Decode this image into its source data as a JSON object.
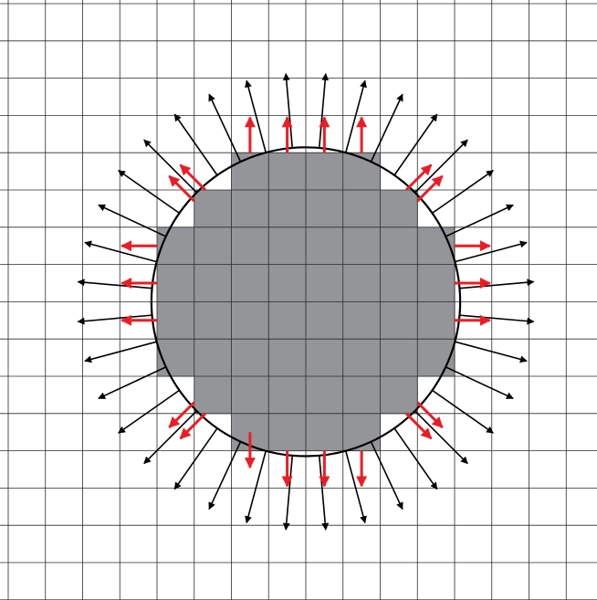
{
  "colors": {
    "background": "#ffffff",
    "grid_line": "#2b2b2b",
    "filled_cell": "#939598",
    "circle_outline": "#000000",
    "normal_arrow": "#000000",
    "staircase_arrow": "#ed1c24"
  },
  "grid": {
    "columns": 16,
    "rows": 16
  },
  "filled_cells_by_row": [
    {
      "row": 4,
      "from_col": 6,
      "to_col": 9
    },
    {
      "row": 5,
      "from_col": 5,
      "to_col": 10
    },
    {
      "row": 6,
      "from_col": 4,
      "to_col": 11
    },
    {
      "row": 7,
      "from_col": 4,
      "to_col": 11
    },
    {
      "row": 8,
      "from_col": 4,
      "to_col": 11
    },
    {
      "row": 9,
      "from_col": 4,
      "to_col": 11
    },
    {
      "row": 10,
      "from_col": 5,
      "to_col": 10
    },
    {
      "row": 11,
      "from_col": 6,
      "to_col": 9
    }
  ],
  "circle": {
    "center_col": 8,
    "center_row": 8,
    "radius_cells": 4.15
  },
  "normal_arrows": {
    "count": 36,
    "length_cells": 2.0
  },
  "staircase_arrows": [
    {
      "start": [
        7.5,
        4
      ],
      "dir": "up"
    },
    {
      "start": [
        8.5,
        4
      ],
      "dir": "up"
    },
    {
      "start": [
        9.5,
        4
      ],
      "dir": "up"
    },
    {
      "start": [
        6.5,
        4
      ],
      "dir": "up"
    },
    {
      "start": [
        6.5,
        11.5
      ],
      "dir": "down"
    },
    {
      "start": [
        7.5,
        12
      ],
      "dir": "down"
    },
    {
      "start": [
        8.5,
        12
      ],
      "dir": "down"
    },
    {
      "start": [
        9.5,
        12
      ],
      "dir": "down"
    },
    {
      "start": [
        4,
        6.5
      ],
      "dir": "left"
    },
    {
      "start": [
        4,
        7.5
      ],
      "dir": "left"
    },
    {
      "start": [
        4,
        8.5
      ],
      "dir": "left"
    },
    {
      "start": [
        12,
        6.5
      ],
      "dir": "right"
    },
    {
      "start": [
        12,
        7.5
      ],
      "dir": "right"
    },
    {
      "start": [
        12,
        8.5
      ],
      "dir": "right"
    },
    {
      "start": [
        5.3,
        5
      ],
      "dir": "upleft"
    },
    {
      "start": [
        5,
        5.3
      ],
      "dir": "upleft"
    },
    {
      "start": [
        10.7,
        5
      ],
      "dir": "upright"
    },
    {
      "start": [
        11,
        5.3
      ],
      "dir": "upright"
    },
    {
      "start": [
        5,
        10.7
      ],
      "dir": "downleft"
    },
    {
      "start": [
        5.3,
        11
      ],
      "dir": "downleft"
    },
    {
      "start": [
        11,
        10.7
      ],
      "dir": "downright"
    },
    {
      "start": [
        10.7,
        11
      ],
      "dir": "downright"
    }
  ]
}
